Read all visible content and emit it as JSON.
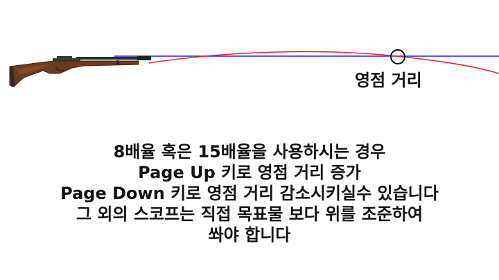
{
  "colors": {
    "line_of_sight": "#2222dd",
    "trajectory": "#e8232a",
    "zero_marker": "#000000",
    "text": "#111111"
  },
  "icons": {
    "rifle": "rifle-icon",
    "zero_point": "circle-marker-icon"
  },
  "labels": {
    "zero_distance": "영점 거리"
  },
  "caption": {
    "lines": [
      "8배율 혹은 15배율을 사용하시는 경우",
      "Page Up 키로 영점 거리 증가",
      "Page Down 키로 영점 거리 감소시키실수 있습니다",
      "그 외의 스코프는 직접 목표물 보다 위를 조준하여",
      "쏴야 합니다"
    ]
  }
}
